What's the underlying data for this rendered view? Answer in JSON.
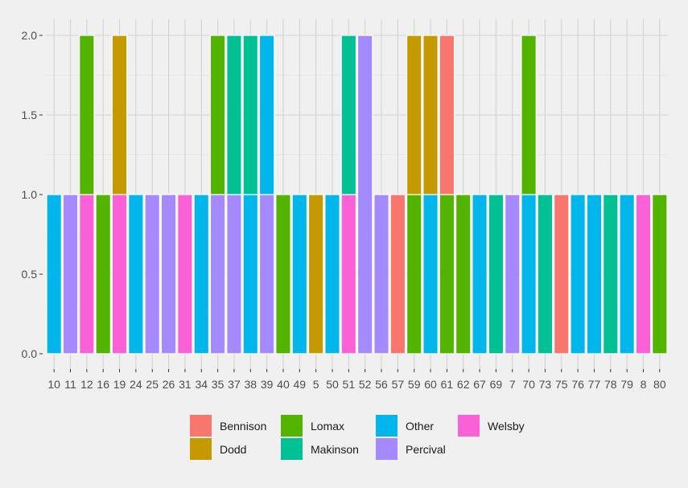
{
  "chart_data": {
    "type": "bar",
    "stacked": true,
    "title": "",
    "xlabel": "",
    "ylabel": "",
    "ylim": [
      0,
      2
    ],
    "y_ticks": [
      "0.0",
      "0.5",
      "1.0",
      "1.5",
      "2.0"
    ],
    "grid": true,
    "legend_position": "bottom",
    "categories": [
      "10",
      "11",
      "12",
      "16",
      "19",
      "24",
      "25",
      "26",
      "31",
      "34",
      "35",
      "37",
      "38",
      "39",
      "40",
      "49",
      "5",
      "50",
      "51",
      "52",
      "56",
      "57",
      "59",
      "60",
      "61",
      "62",
      "67",
      "69",
      "7",
      "70",
      "73",
      "75",
      "76",
      "77",
      "78",
      "79",
      "8",
      "80"
    ],
    "series": [
      {
        "name": "Bennison",
        "color": "#F8766D",
        "values": [
          0,
          0,
          0,
          0,
          0,
          0,
          0,
          0,
          0,
          0,
          0,
          0,
          0,
          0,
          0,
          0,
          0,
          0,
          0,
          0,
          0,
          1,
          0,
          0,
          1,
          0,
          0,
          0,
          0,
          0,
          0,
          1,
          0,
          0,
          0,
          0,
          0,
          0
        ]
      },
      {
        "name": "Dodd",
        "color": "#C49A00",
        "values": [
          0,
          0,
          0,
          0,
          1,
          0,
          0,
          0,
          0,
          0,
          0,
          0,
          0,
          0,
          0,
          0,
          1,
          0,
          0,
          0,
          0,
          0,
          1,
          1,
          0,
          0,
          0,
          0,
          0,
          0,
          0,
          0,
          0,
          0,
          0,
          0,
          0,
          0
        ]
      },
      {
        "name": "Lomax",
        "color": "#53B400",
        "values": [
          0,
          0,
          1,
          1,
          0,
          0,
          0,
          0,
          0,
          0,
          1,
          0,
          0,
          0,
          1,
          0,
          0,
          0,
          0,
          0,
          0,
          0,
          1,
          0,
          1,
          1,
          0,
          0,
          0,
          1,
          0,
          0,
          0,
          0,
          0,
          0,
          0,
          1
        ]
      },
      {
        "name": "Makinson",
        "color": "#00C094",
        "values": [
          0,
          0,
          0,
          0,
          0,
          0,
          0,
          0,
          0,
          0,
          0,
          1,
          1,
          0,
          0,
          0,
          0,
          0,
          1,
          0,
          0,
          0,
          0,
          0,
          0,
          0,
          0,
          1,
          0,
          0,
          1,
          0,
          0,
          0,
          1,
          0,
          0,
          0
        ]
      },
      {
        "name": "Other",
        "color": "#00B6EB",
        "values": [
          1,
          0,
          0,
          0,
          0,
          1,
          0,
          0,
          0,
          1,
          0,
          0,
          1,
          1,
          0,
          1,
          0,
          1,
          0,
          0,
          0,
          0,
          0,
          1,
          0,
          0,
          1,
          0,
          0,
          1,
          0,
          0,
          1,
          1,
          0,
          1,
          0,
          0
        ]
      },
      {
        "name": "Percival",
        "color": "#A58AFF",
        "values": [
          0,
          1,
          0,
          0,
          0,
          0,
          1,
          1,
          0,
          0,
          1,
          1,
          0,
          1,
          0,
          0,
          0,
          0,
          0,
          2,
          1,
          0,
          0,
          0,
          0,
          0,
          0,
          0,
          1,
          0,
          0,
          0,
          0,
          0,
          0,
          0,
          0,
          0
        ]
      },
      {
        "name": "Welsby",
        "color": "#FB61D7",
        "values": [
          0,
          0,
          1,
          0,
          1,
          0,
          0,
          0,
          1,
          0,
          0,
          0,
          0,
          0,
          0,
          0,
          0,
          0,
          1,
          0,
          0,
          0,
          0,
          0,
          0,
          0,
          0,
          0,
          0,
          0,
          0,
          0,
          0,
          0,
          0,
          0,
          1,
          0
        ]
      }
    ]
  }
}
